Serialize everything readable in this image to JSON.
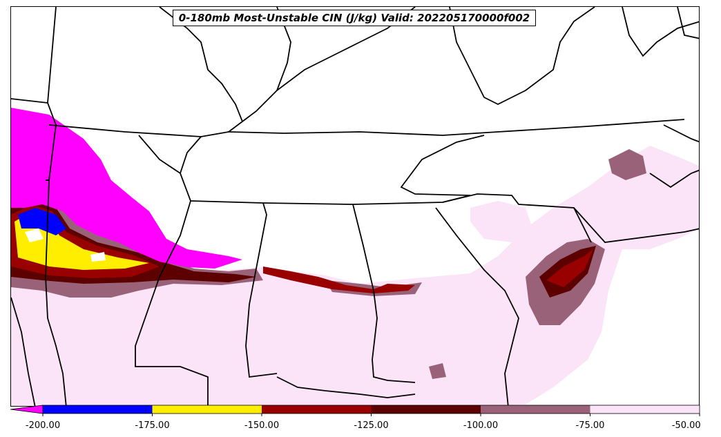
{
  "title": "0-180mb Most-Unstable CIN (J/kg) Valid: 202205170000f002",
  "colorbar": {
    "extend": "min",
    "bins": [
      {
        "from": -200,
        "to": -175,
        "color": "#0000ff"
      },
      {
        "from": -175,
        "to": -150,
        "color": "#ffee00"
      },
      {
        "from": -150,
        "to": -125,
        "color": "#990000"
      },
      {
        "from": -125,
        "to": -100,
        "color": "#5c0000"
      },
      {
        "from": -100,
        "to": -75,
        "color": "#9a6278"
      },
      {
        "from": -75,
        "to": -50,
        "color": "#fbe3f8"
      }
    ],
    "under_color": "#ff00ff",
    "tick_labels": [
      "-200.00",
      "-175.00",
      "-150.00",
      "-125.00",
      "-100.00",
      "-75.00",
      "-50.00"
    ]
  },
  "colors": {
    "magenta": "#ff00ff",
    "blue": "#0000ff",
    "yellow": "#ffee00",
    "red": "#990000",
    "dark_red": "#5c0000",
    "mauve": "#9a6278",
    "light_pink": "#fbe3f8",
    "border": "#000000"
  }
}
